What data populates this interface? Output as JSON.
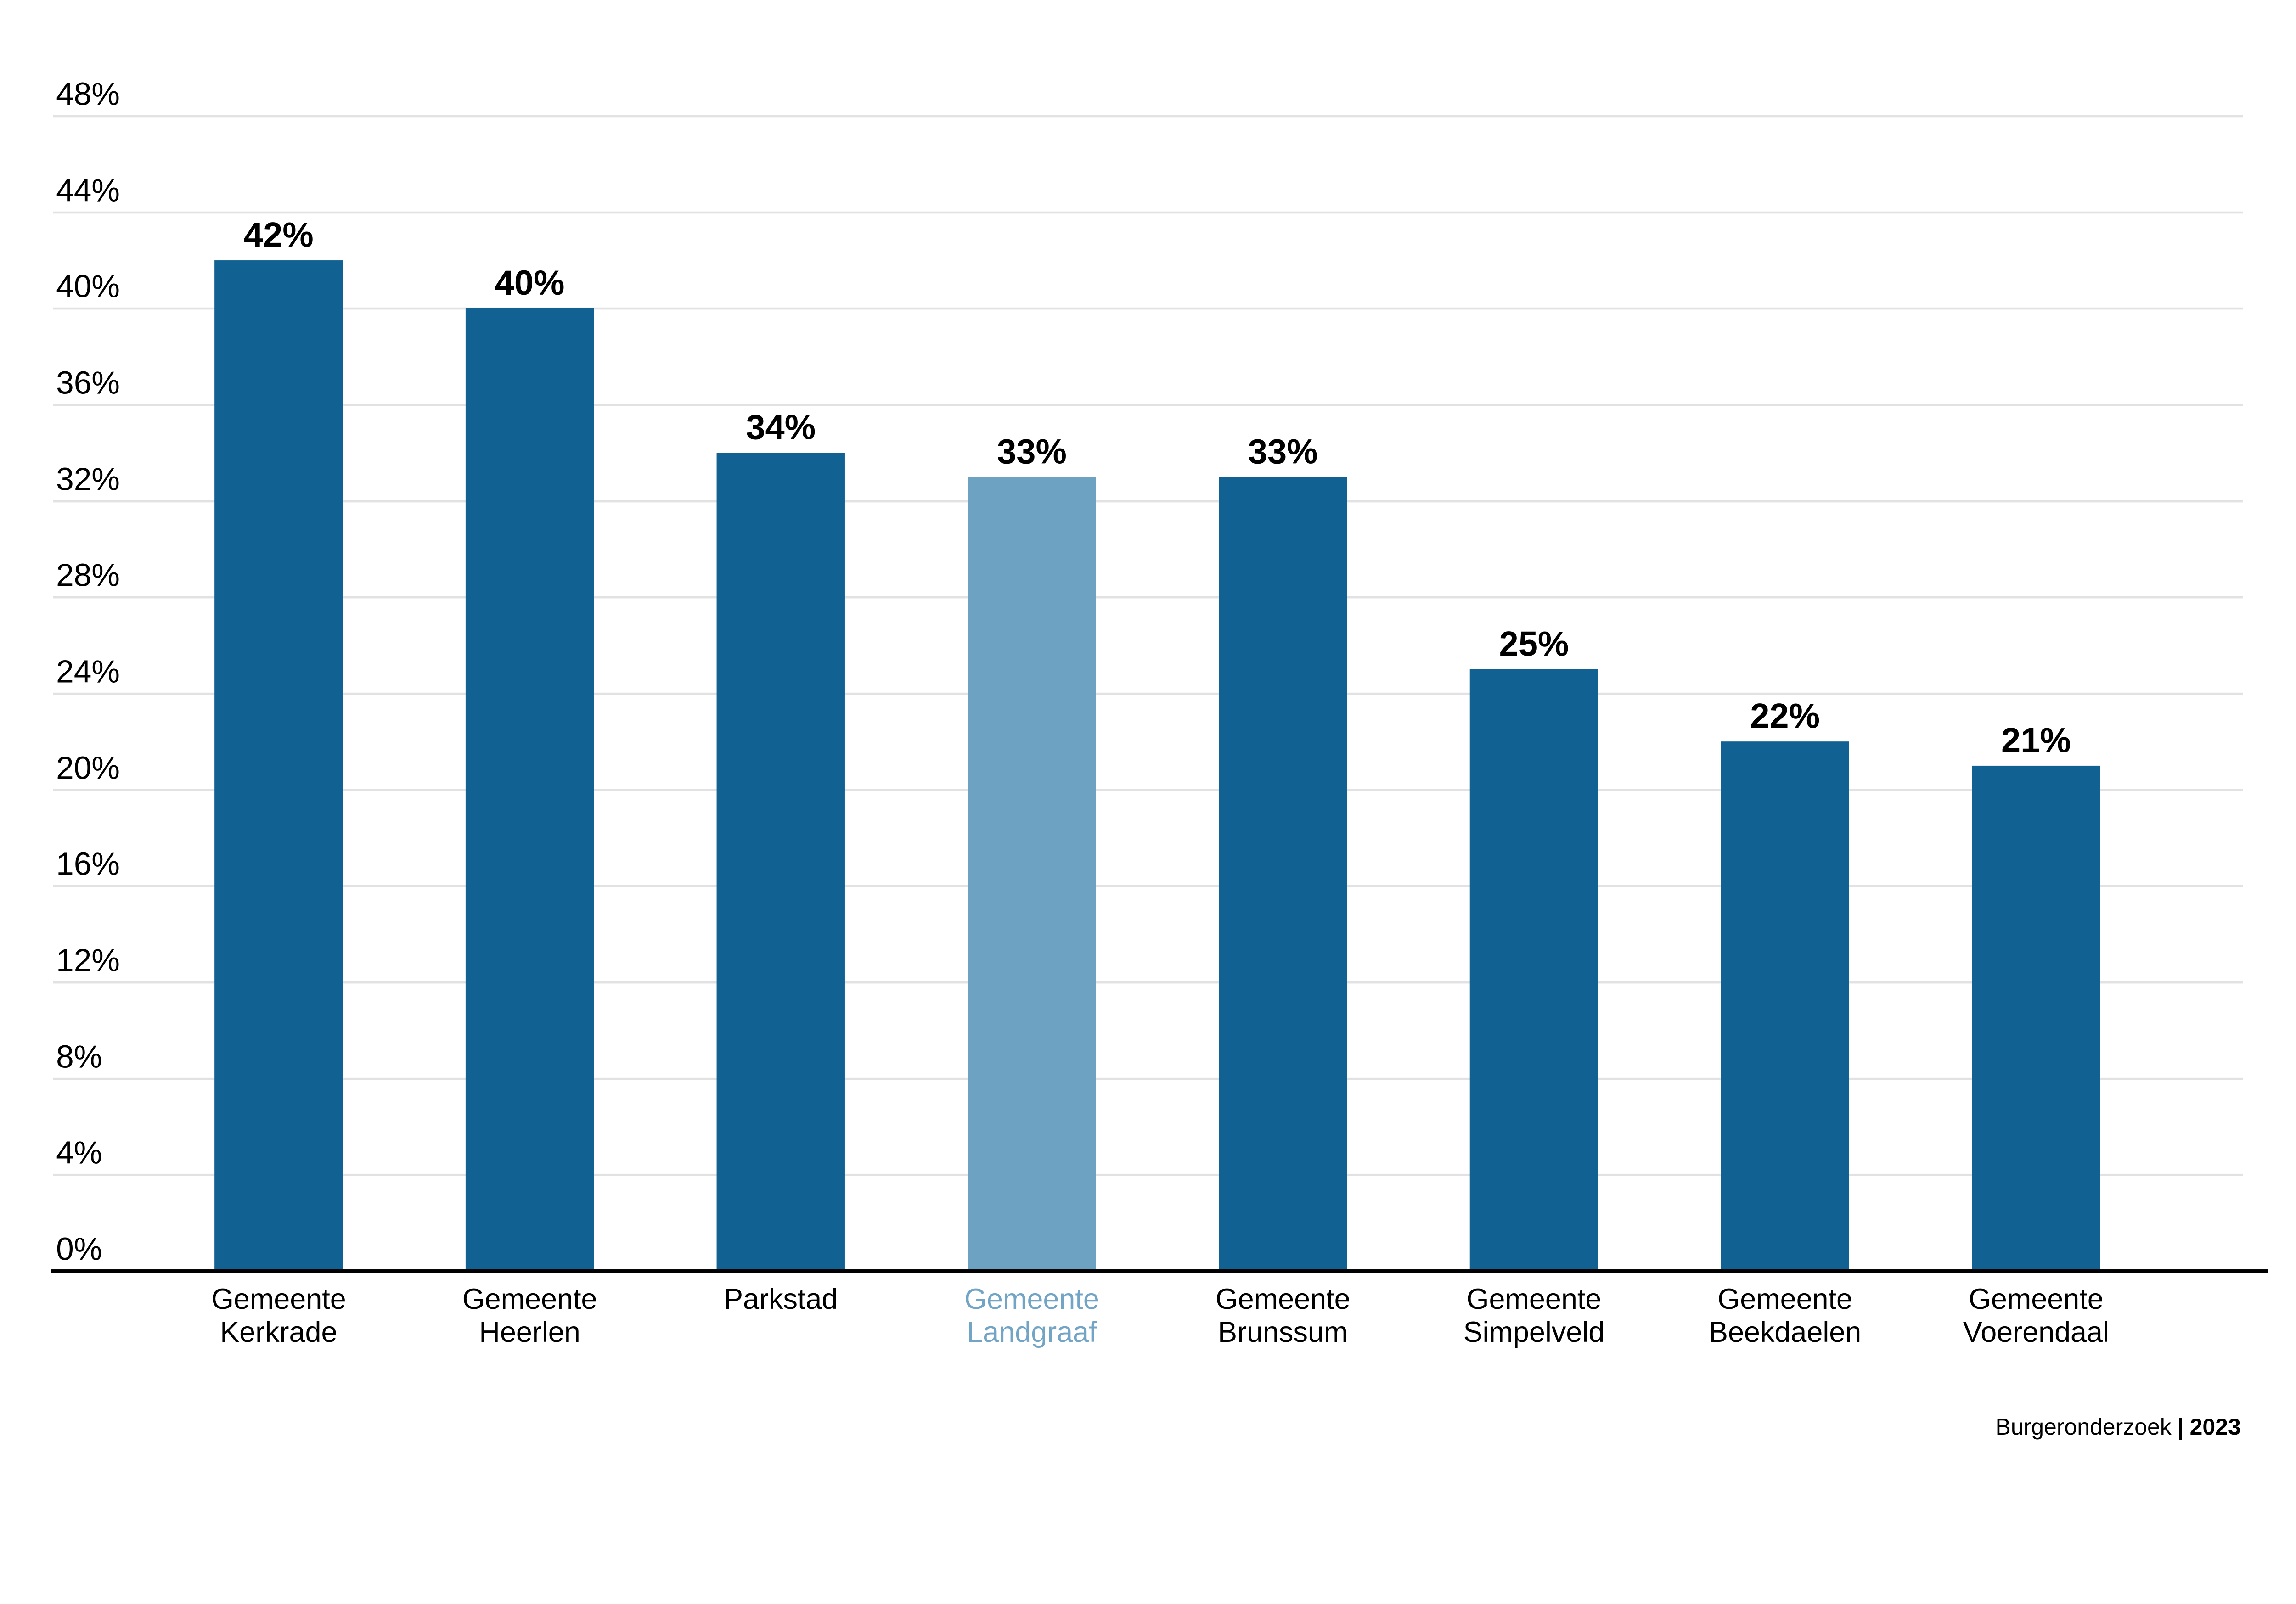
{
  "chart_data": {
    "type": "bar",
    "title": "",
    "categories": [
      "Gemeente Kerkrade",
      "Gemeente Heerlen",
      "Parkstad",
      "Gemeente Landgraaf",
      "Gemeente Brunssum",
      "Gemeente Simpelveld",
      "Gemeente Beekdaelen",
      "Gemeente Voerendaal"
    ],
    "category_lines": [
      [
        "Gemeente",
        "Kerkrade"
      ],
      [
        "Gemeente",
        "Heerlen"
      ],
      [
        "Parkstad"
      ],
      [
        "Gemeente",
        "Landgraaf"
      ],
      [
        "Gemeente",
        "Brunssum"
      ],
      [
        "Gemeente",
        "Simpelveld"
      ],
      [
        "Gemeente",
        "Beekdaelen"
      ],
      [
        "Gemeente",
        "Voerendaal"
      ]
    ],
    "values": [
      42,
      40,
      34,
      33,
      33,
      25,
      22,
      21
    ],
    "value_labels": [
      "42%",
      "40%",
      "34%",
      "33%",
      "33%",
      "25%",
      "22%",
      "21%"
    ],
    "highlight_index": 3,
    "highlighted_category": "Gemeente Landgraaf",
    "y_ticks": [
      {
        "value": 48,
        "label": "48%"
      },
      {
        "value": 44,
        "label": "44%"
      },
      {
        "value": 40,
        "label": "40%"
      },
      {
        "value": 36,
        "label": "36%"
      },
      {
        "value": 32,
        "label": "32%"
      },
      {
        "value": 28,
        "label": "28%"
      },
      {
        "value": 24,
        "label": "24%"
      },
      {
        "value": 20,
        "label": "20%"
      },
      {
        "value": 16,
        "label": "16%"
      },
      {
        "value": 12,
        "label": "12%"
      },
      {
        "value": 8,
        "label": "8%"
      },
      {
        "value": 4,
        "label": "4%"
      },
      {
        "value": 0,
        "label": "0%"
      }
    ],
    "ylim": [
      0,
      48
    ],
    "grid": true,
    "legend_position": "none",
    "colors": {
      "bar": "#116292",
      "highlight_bar": "#6DA2C2",
      "highlight_text": "#72A4C6",
      "gridline": "#E2E2E2",
      "axis": "#000000",
      "text": "#000000"
    }
  },
  "footer": {
    "source": "Burgeronderzoek",
    "separator": "|",
    "year": "2023"
  }
}
